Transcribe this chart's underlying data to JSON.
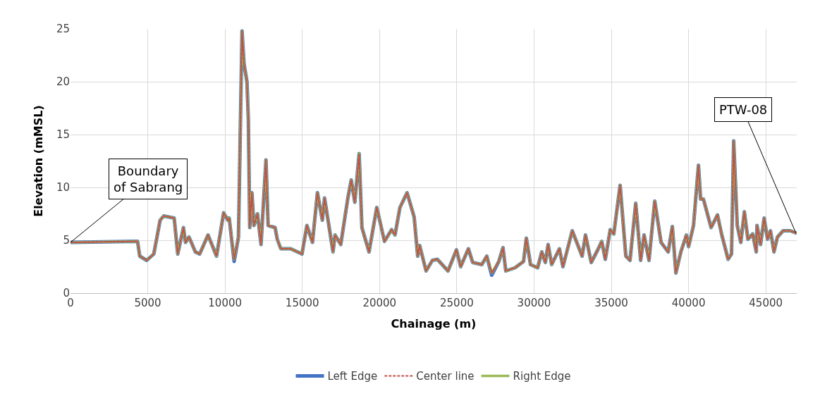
{
  "chart_data": {
    "type": "line",
    "xlabel": "Chainage (m)",
    "ylabel": "Elevation (mMSL)",
    "xlim": [
      0,
      47000
    ],
    "xticks": [
      0,
      5000,
      10000,
      15000,
      20000,
      25000,
      30000,
      35000,
      40000,
      45000
    ],
    "ylim": [
      0,
      25
    ],
    "yticks": [
      0,
      5,
      10,
      15,
      20,
      25
    ],
    "grid": true,
    "legend": "bottom",
    "marker": "none",
    "x": [
      0,
      4340,
      4480,
      4930,
      5390,
      5800,
      6030,
      6710,
      6940,
      7310,
      7440,
      7670,
      8080,
      8360,
      8900,
      9450,
      9910,
      10180,
      10270,
      10590,
      10870,
      11100,
      11230,
      11420,
      11510,
      11600,
      11740,
      11870,
      12100,
      12330,
      12650,
      12790,
      13240,
      13380,
      13610,
      14250,
      14980,
      15300,
      15660,
      15980,
      16300,
      16440,
      16990,
      17120,
      17490,
      17950,
      18170,
      18400,
      18680,
      18860,
      19320,
      19820,
      20320,
      20780,
      21000,
      21320,
      21780,
      22240,
      22470,
      22600,
      23010,
      23420,
      23740,
      24430,
      24980,
      25250,
      25750,
      26030,
      26620,
      26940,
      27260,
      27720,
      27990,
      28170,
      28770,
      29320,
      29500,
      29770,
      30230,
      30500,
      30730,
      30910,
      31140,
      31640,
      31870,
      32470,
      33110,
      33330,
      33700,
      34160,
      34380,
      34610,
      34930,
      35160,
      35570,
      35940,
      36210,
      36580,
      36900,
      37120,
      37440,
      37810,
      38220,
      38680,
      38950,
      39180,
      39500,
      39860,
      40000,
      40320,
      40640,
      40780,
      40960,
      41460,
      41870,
      42150,
      42560,
      42780,
      42920,
      43150,
      43380,
      43610,
      43840,
      44150,
      44380,
      44430,
      44660,
      44890,
      45110,
      45300,
      45530,
      45750,
      46120,
      46580,
      46940
    ],
    "series": [
      {
        "name": "Left Edge",
        "color": "#4472c4",
        "line_style": "solid",
        "values": [
          4.8,
          4.9,
          3.5,
          3.1,
          3.7,
          6.9,
          7.3,
          7.1,
          3.7,
          6.2,
          4.8,
          5.3,
          3.9,
          3.7,
          5.5,
          3.5,
          7.6,
          6.9,
          7.1,
          3.0,
          5.3,
          24.8,
          21.7,
          20.0,
          16.4,
          6.2,
          9.5,
          6.4,
          7.5,
          4.6,
          12.6,
          6.4,
          6.2,
          5.1,
          4.2,
          4.2,
          3.7,
          6.4,
          4.8,
          9.5,
          6.9,
          9.0,
          3.9,
          5.5,
          4.6,
          9.0,
          10.7,
          8.6,
          13.2,
          6.2,
          3.9,
          8.1,
          4.9,
          6.0,
          5.5,
          8.1,
          9.5,
          7.2,
          3.5,
          4.5,
          2.1,
          3.1,
          3.2,
          2.1,
          4.1,
          2.5,
          4.2,
          2.9,
          2.7,
          3.5,
          1.7,
          3.0,
          4.3,
          2.1,
          2.4,
          3.0,
          5.2,
          2.7,
          2.4,
          3.9,
          2.9,
          4.6,
          2.7,
          4.2,
          2.5,
          5.9,
          3.5,
          5.5,
          2.9,
          4.2,
          4.9,
          3.2,
          6.0,
          5.6,
          10.2,
          3.5,
          3.1,
          8.5,
          3.1,
          5.5,
          3.1,
          8.7,
          4.8,
          3.9,
          6.3,
          1.9,
          3.9,
          5.5,
          4.4,
          6.4,
          12.1,
          8.9,
          8.9,
          6.2,
          7.4,
          5.5,
          3.2,
          3.7,
          14.4,
          6.4,
          4.8,
          7.7,
          5.1,
          5.6,
          3.9,
          6.4,
          4.6,
          7.1,
          5.1,
          5.9,
          3.9,
          5.3,
          5.9,
          5.9,
          5.7
        ]
      },
      {
        "name": "Center line",
        "color": "#c0504d",
        "line_style": "dashed",
        "values": [
          4.8,
          4.9,
          3.5,
          3.1,
          3.7,
          6.9,
          7.3,
          7.1,
          3.7,
          6.2,
          4.8,
          5.3,
          3.9,
          3.7,
          5.5,
          3.5,
          7.6,
          6.9,
          7.1,
          3.2,
          5.3,
          24.8,
          21.7,
          20.0,
          16.4,
          6.2,
          9.5,
          6.4,
          7.5,
          4.6,
          12.6,
          6.4,
          6.2,
          5.1,
          4.2,
          4.2,
          3.7,
          6.4,
          4.8,
          9.5,
          6.9,
          9.0,
          3.9,
          5.5,
          4.6,
          9.0,
          10.7,
          8.6,
          13.2,
          6.2,
          3.9,
          8.1,
          4.9,
          6.0,
          5.5,
          8.1,
          9.5,
          7.2,
          3.5,
          4.5,
          2.1,
          3.1,
          3.2,
          2.1,
          4.1,
          2.5,
          4.2,
          2.9,
          2.7,
          3.5,
          1.9,
          3.0,
          4.3,
          2.1,
          2.4,
          3.0,
          5.2,
          2.7,
          2.4,
          3.9,
          2.9,
          4.6,
          2.7,
          4.2,
          2.5,
          5.9,
          3.5,
          5.5,
          2.9,
          4.2,
          4.9,
          3.2,
          6.0,
          5.6,
          10.2,
          3.5,
          3.1,
          8.5,
          3.1,
          5.5,
          3.1,
          8.7,
          4.8,
          3.9,
          6.3,
          1.9,
          3.9,
          5.5,
          4.4,
          6.4,
          12.1,
          8.9,
          8.9,
          6.2,
          7.4,
          5.5,
          3.2,
          3.7,
          14.4,
          6.4,
          4.8,
          7.7,
          5.1,
          5.6,
          3.9,
          6.4,
          4.6,
          7.1,
          5.1,
          5.9,
          3.9,
          5.3,
          5.9,
          5.9,
          5.7
        ]
      },
      {
        "name": "Right Edge",
        "color": "#9bbb59",
        "line_style": "solid",
        "values": [
          4.8,
          4.9,
          3.5,
          3.1,
          3.7,
          6.9,
          7.3,
          7.1,
          3.7,
          6.2,
          4.8,
          5.3,
          3.9,
          3.7,
          5.5,
          3.5,
          7.6,
          6.9,
          7.1,
          3.2,
          5.3,
          24.8,
          21.7,
          20.0,
          16.4,
          6.2,
          9.5,
          6.4,
          7.5,
          4.6,
          12.6,
          6.4,
          6.2,
          5.1,
          4.2,
          4.2,
          3.7,
          6.4,
          4.8,
          9.5,
          6.9,
          9.0,
          3.9,
          5.5,
          4.6,
          9.0,
          10.7,
          8.6,
          13.2,
          6.2,
          3.9,
          8.1,
          4.9,
          6.0,
          5.5,
          8.1,
          9.5,
          7.2,
          3.5,
          4.5,
          2.1,
          3.1,
          3.2,
          2.1,
          4.1,
          2.5,
          4.2,
          2.9,
          2.7,
          3.5,
          1.9,
          3.0,
          4.3,
          2.1,
          2.4,
          3.0,
          5.2,
          2.7,
          2.4,
          3.9,
          2.9,
          4.6,
          2.7,
          4.2,
          2.5,
          5.9,
          3.5,
          5.5,
          2.9,
          4.2,
          4.9,
          3.2,
          6.0,
          5.6,
          10.2,
          3.5,
          3.1,
          8.5,
          3.1,
          5.5,
          3.1,
          8.7,
          4.8,
          3.9,
          6.3,
          1.9,
          3.9,
          5.5,
          4.4,
          6.4,
          12.1,
          8.9,
          8.9,
          6.2,
          7.4,
          5.5,
          3.2,
          3.7,
          14.4,
          6.4,
          4.8,
          7.7,
          5.1,
          5.6,
          3.9,
          6.4,
          4.6,
          7.1,
          5.1,
          5.9,
          3.9,
          5.3,
          5.9,
          5.9,
          5.7
        ]
      }
    ],
    "annotations": [
      {
        "text": "Boundary\nof Sabrang",
        "x": 0,
        "y": 4.8
      },
      {
        "text": "PTW-08",
        "x": 46940,
        "y": 5.7
      }
    ]
  }
}
